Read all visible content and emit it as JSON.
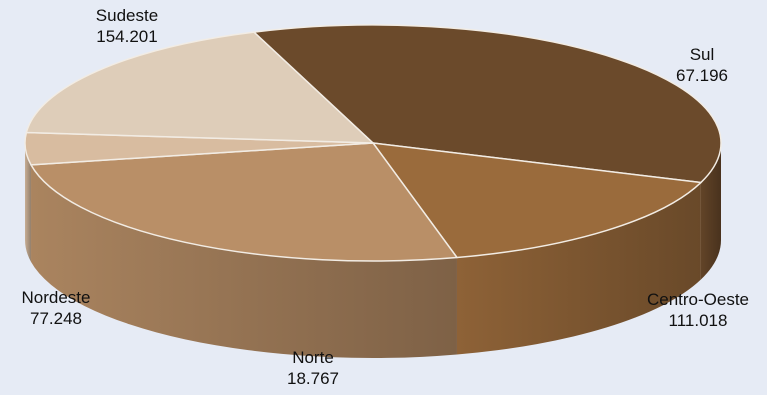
{
  "chart_data": {
    "type": "pie",
    "title": "",
    "slices": [
      {
        "label": "Sudeste",
        "value": 154201,
        "value_text": "154.201",
        "color": "#6b4a2b"
      },
      {
        "label": "Sul",
        "value": 67196,
        "value_text": "67.196",
        "color": "#9a6b3c"
      },
      {
        "label": "Centro-Oeste",
        "value": 111018,
        "value_text": "111.018",
        "color": "#b98f67"
      },
      {
        "label": "Norte",
        "value": 18767,
        "value_text": "18.767",
        "color": "#d8bca0"
      },
      {
        "label": "Nordeste",
        "value": 77248,
        "value_text": "77.248",
        "color": "#decdb9"
      }
    ],
    "style": "3d",
    "legend": "none"
  },
  "colors": {
    "background": "#e6ebf5",
    "edge": "#f2ece4"
  }
}
